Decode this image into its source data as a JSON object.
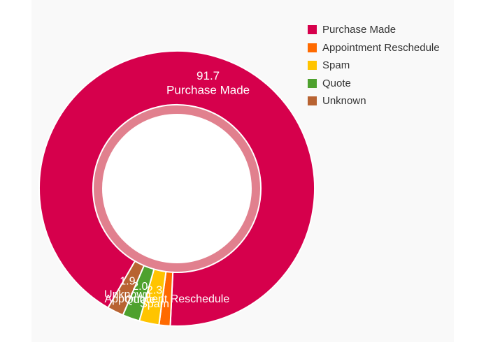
{
  "chart_data": {
    "type": "pie",
    "donut": true,
    "categories": [
      "Purchase Made",
      "Appointment Reschedule",
      "Spam",
      "Quote",
      "Unknown"
    ],
    "values": [
      91.7,
      1.3,
      2.3,
      2.0,
      1.9
    ],
    "colors": [
      "#d6004c",
      "#ff6a00",
      "#ffc400",
      "#4ea12e",
      "#b86332"
    ],
    "value_labels": [
      "91.7",
      "",
      "2.3",
      "2.0",
      "1.9"
    ],
    "legend_position": "top-right"
  }
}
